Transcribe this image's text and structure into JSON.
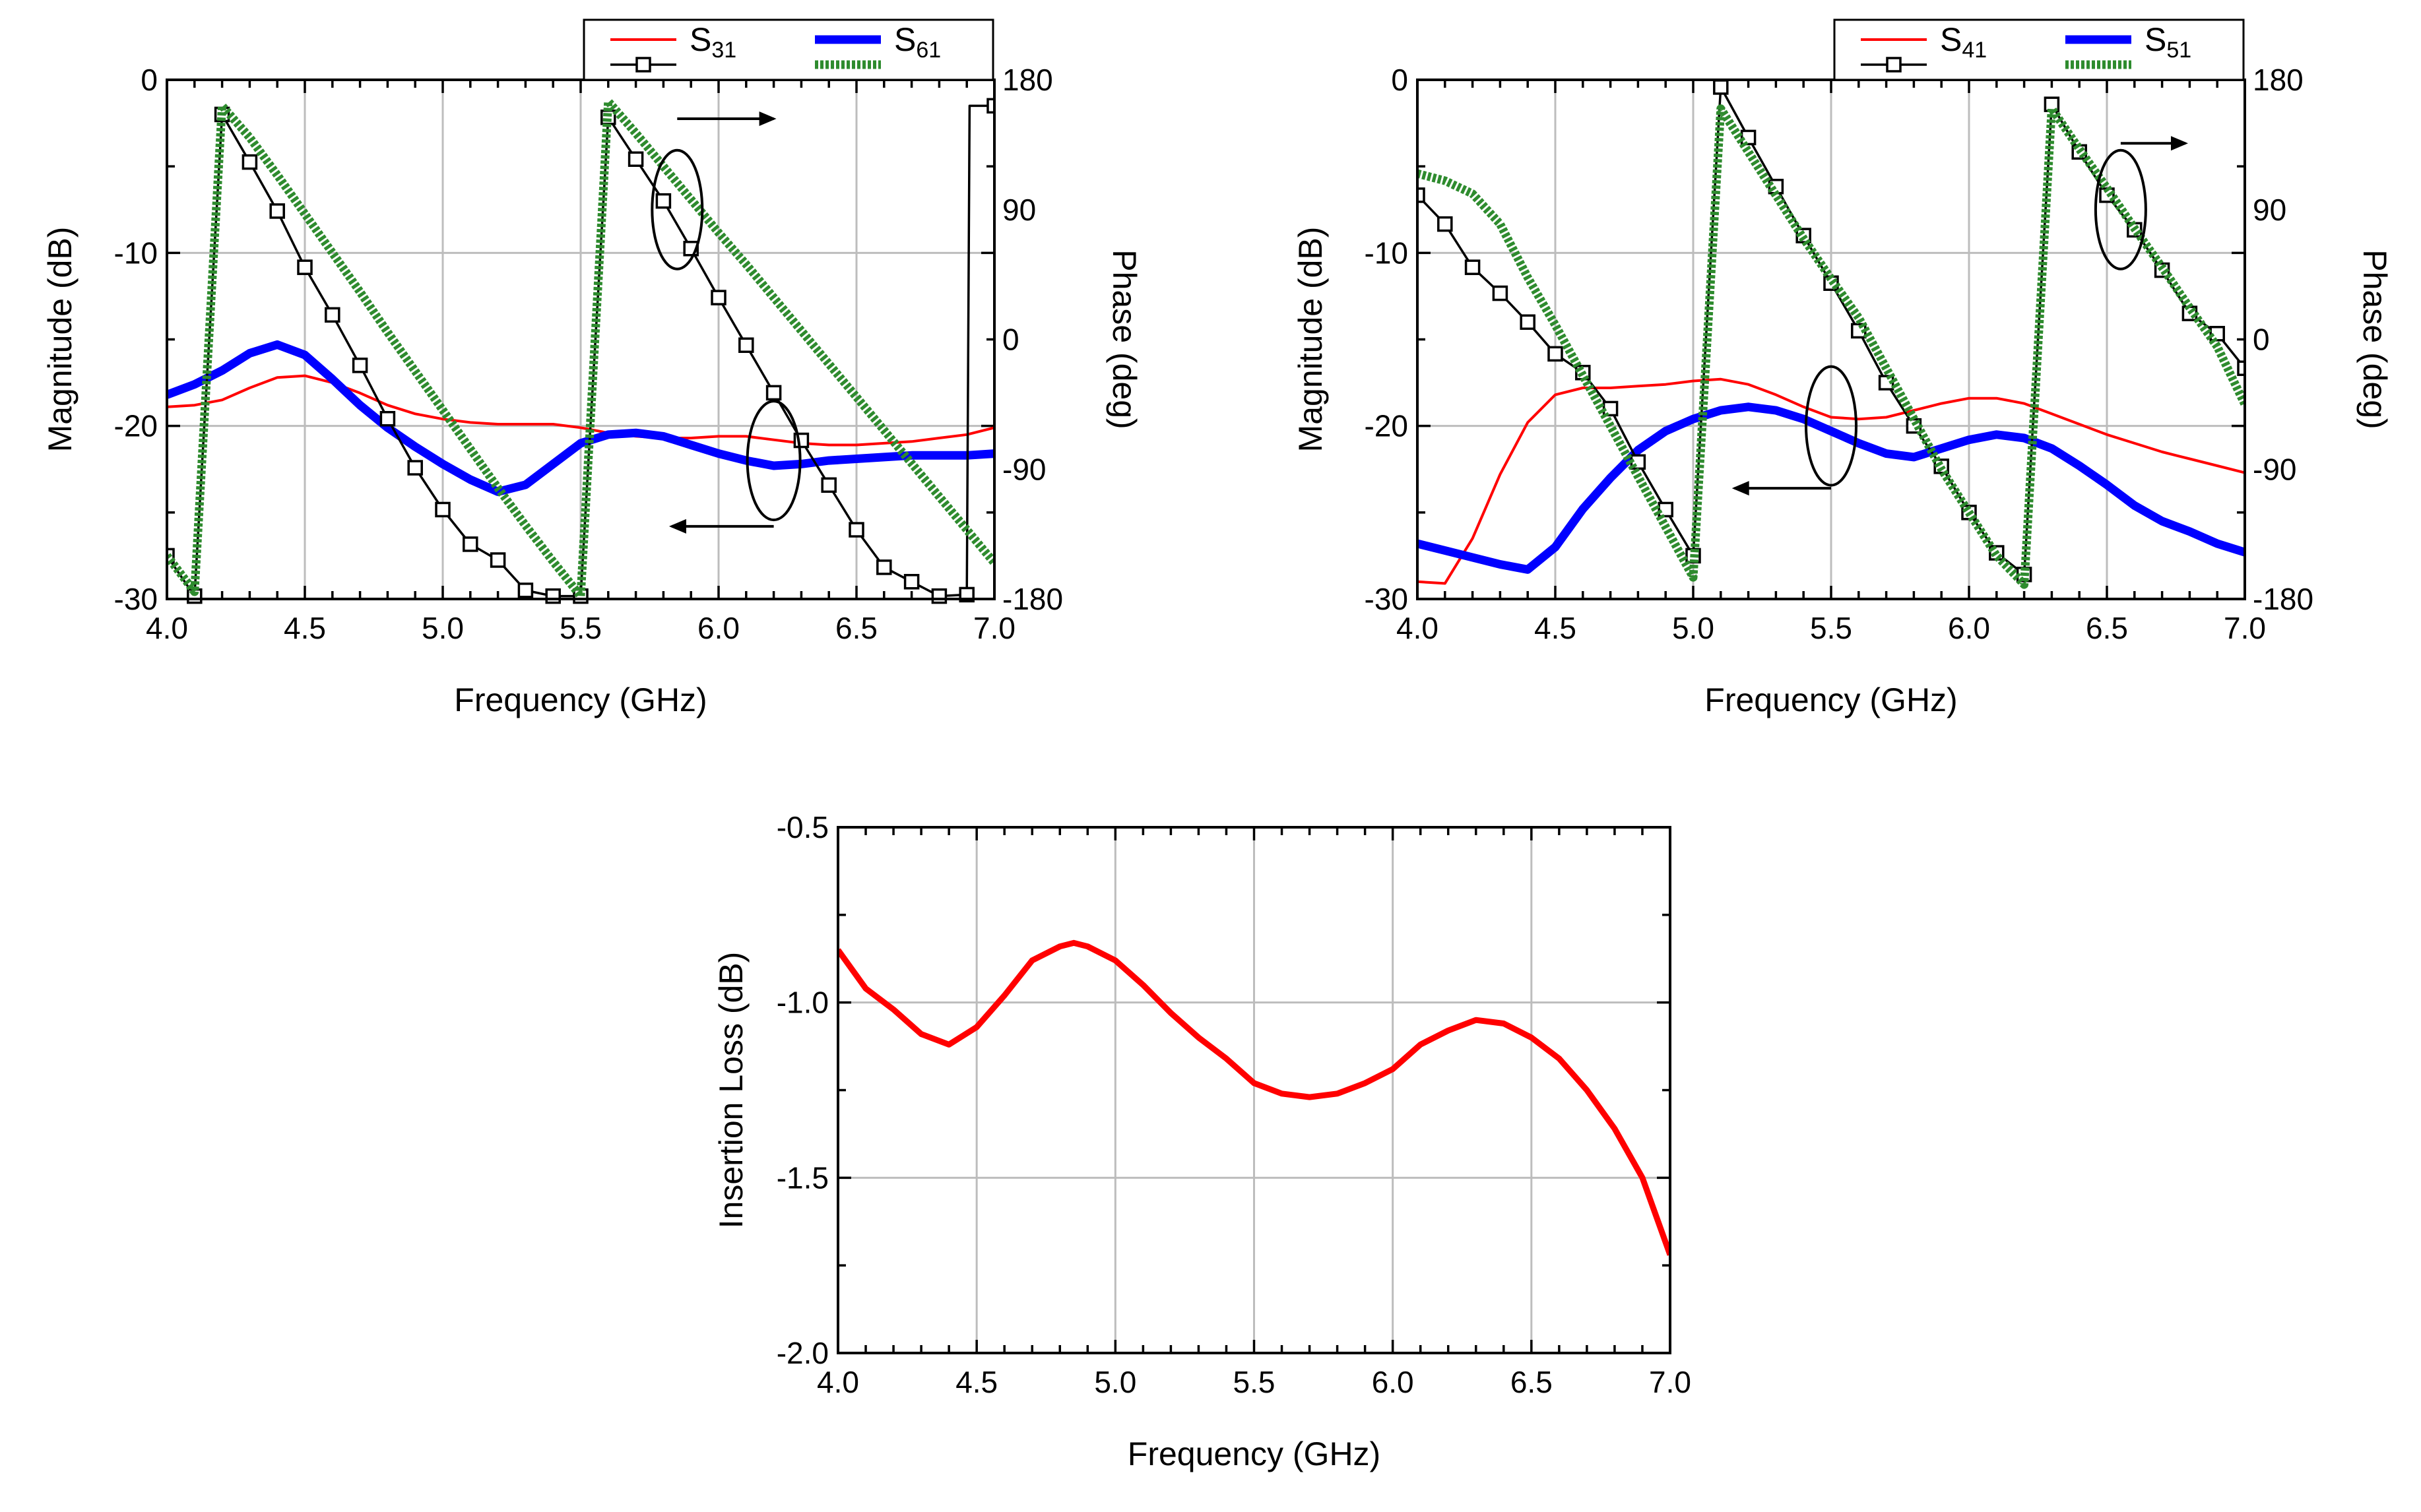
{
  "chart_data": [
    {
      "id": "chart1",
      "type": "line",
      "xlabel": "Frequency (GHz)",
      "ylabel": "Magnitude (dB)",
      "y2label": "Phase (deg)",
      "xlim": [
        4.0,
        7.0
      ],
      "ylim": [
        -30,
        0
      ],
      "y2lim": [
        -180,
        180
      ],
      "xticks": [
        "4.0",
        "4.5",
        "5.0",
        "5.5",
        "6.0",
        "6.5",
        "7.0"
      ],
      "yticks": [
        "0",
        "-10",
        "-20",
        "-30"
      ],
      "y2ticks": [
        "180",
        "90",
        "0",
        "-90",
        "-180"
      ],
      "grid": true,
      "legend_position": "top",
      "series": [
        {
          "name": "S31 magnitude",
          "label": "S",
          "sub": "31",
          "style": "thin-red",
          "axis": "left",
          "x": [
            4.0,
            4.1,
            4.2,
            4.3,
            4.4,
            4.5,
            4.6,
            4.7,
            4.8,
            4.9,
            5.0,
            5.1,
            5.2,
            5.3,
            5.4,
            5.5,
            5.6,
            5.7,
            5.8,
            5.9,
            6.0,
            6.1,
            6.2,
            6.3,
            6.4,
            6.5,
            6.6,
            6.7,
            6.8,
            6.9,
            7.0
          ],
          "y": [
            -18.9,
            -18.8,
            -18.5,
            -17.8,
            -17.2,
            -17.1,
            -17.5,
            -18.1,
            -18.8,
            -19.3,
            -19.6,
            -19.8,
            -19.9,
            -19.9,
            -19.9,
            -20.1,
            -20.4,
            -20.6,
            -20.7,
            -20.7,
            -20.6,
            -20.6,
            -20.8,
            -21.0,
            -21.1,
            -21.1,
            -21.0,
            -20.9,
            -20.7,
            -20.5,
            -20.1
          ]
        },
        {
          "name": "S61 magnitude",
          "label": "S",
          "sub": "61",
          "style": "thick-blue",
          "axis": "left",
          "x": [
            4.0,
            4.1,
            4.2,
            4.3,
            4.4,
            4.5,
            4.6,
            4.7,
            4.8,
            4.9,
            5.0,
            5.1,
            5.2,
            5.3,
            5.4,
            5.5,
            5.6,
            5.7,
            5.8,
            5.9,
            6.0,
            6.1,
            6.2,
            6.3,
            6.4,
            6.5,
            6.6,
            6.7,
            6.8,
            6.9,
            7.0
          ],
          "y": [
            -18.2,
            -17.6,
            -16.8,
            -15.8,
            -15.3,
            -15.9,
            -17.3,
            -18.8,
            -20.1,
            -21.2,
            -22.2,
            -23.1,
            -23.8,
            -23.4,
            -22.2,
            -21.0,
            -20.5,
            -20.4,
            -20.6,
            -21.1,
            -21.6,
            -22.0,
            -22.3,
            -22.2,
            -22.0,
            -21.9,
            -21.8,
            -21.7,
            -21.7,
            -21.7,
            -21.6
          ]
        },
        {
          "name": "S31 phase",
          "label": "S",
          "sub": "31",
          "style": "black-square",
          "axis": "right",
          "x": [
            4.0,
            4.1,
            4.1,
            4.2,
            4.3,
            4.4,
            4.5,
            4.6,
            4.7,
            4.8,
            4.9,
            5.0,
            5.1,
            5.2,
            5.3,
            5.4,
            5.5,
            5.5,
            5.6,
            5.7,
            5.8,
            5.9,
            6.0,
            6.1,
            6.2,
            6.3,
            6.4,
            6.5,
            6.6,
            6.7,
            6.8,
            6.9,
            6.91,
            7.0
          ],
          "y": [
            -150,
            -178,
            -178,
            156,
            123,
            89,
            50,
            17,
            -18,
            -55,
            -89,
            -118,
            -142,
            -153,
            -174,
            -178,
            -178,
            -178,
            154,
            125,
            96,
            63,
            29,
            -4,
            -37,
            -70,
            -101,
            -132,
            -158,
            -168,
            -178,
            -177,
            162,
            162
          ]
        },
        {
          "name": "S61 phase",
          "label": "S",
          "sub": "61",
          "style": "dotted-green",
          "axis": "right",
          "x": [
            4.0,
            4.1,
            4.2,
            4.3,
            4.4,
            4.5,
            4.6,
            4.7,
            4.8,
            4.9,
            5.0,
            5.1,
            5.2,
            5.3,
            5.4,
            5.5,
            5.6,
            5.7,
            5.8,
            5.9,
            6.0,
            6.1,
            6.2,
            6.3,
            6.4,
            6.5,
            6.6,
            6.7,
            6.8,
            6.9,
            7.0
          ],
          "y": [
            -150,
            -175,
            162,
            140,
            114,
            87,
            60,
            33,
            5,
            -22,
            -49,
            -76,
            -103,
            -129,
            -154,
            -178,
            165,
            143,
            120,
            97,
            74,
            52,
            29,
            6,
            -17,
            -40,
            -63,
            -86,
            -109,
            -132,
            -155
          ]
        }
      ],
      "annotations": [
        "magnitude-group-arrow-left",
        "phase-group-arrow-right"
      ]
    },
    {
      "id": "chart2",
      "type": "line",
      "xlabel": "Frequency (GHz)",
      "ylabel": "Magnitude (dB)",
      "y2label": "Phase (deg)",
      "xlim": [
        4.0,
        7.0
      ],
      "ylim": [
        -30,
        0
      ],
      "y2lim": [
        -180,
        180
      ],
      "xticks": [
        "4.0",
        "4.5",
        "5.0",
        "5.5",
        "6.0",
        "6.5",
        "7.0"
      ],
      "yticks": [
        "0",
        "-10",
        "-20",
        "-30"
      ],
      "y2ticks": [
        "180",
        "90",
        "0",
        "-90",
        "-180"
      ],
      "grid": true,
      "legend_position": "top",
      "series": [
        {
          "name": "S41 magnitude",
          "label": "S",
          "sub": "41",
          "style": "thin-red",
          "axis": "left",
          "x": [
            4.0,
            4.1,
            4.2,
            4.3,
            4.4,
            4.5,
            4.6,
            4.7,
            4.8,
            4.9,
            5.0,
            5.1,
            5.2,
            5.3,
            5.4,
            5.5,
            5.6,
            5.7,
            5.8,
            5.9,
            6.0,
            6.1,
            6.2,
            6.3,
            6.4,
            6.5,
            6.6,
            6.7,
            6.8,
            6.9,
            7.0
          ],
          "y": [
            -29.0,
            -29.1,
            -26.5,
            -22.8,
            -19.8,
            -18.2,
            -17.8,
            -17.8,
            -17.7,
            -17.6,
            -17.4,
            -17.3,
            -17.6,
            -18.2,
            -18.9,
            -19.5,
            -19.6,
            -19.5,
            -19.1,
            -18.7,
            -18.4,
            -18.4,
            -18.7,
            -19.3,
            -19.9,
            -20.5,
            -21.0,
            -21.5,
            -21.9,
            -22.3,
            -22.7
          ]
        },
        {
          "name": "S51 magnitude",
          "label": "S",
          "sub": "51",
          "style": "thick-blue",
          "axis": "left",
          "x": [
            4.0,
            4.1,
            4.2,
            4.3,
            4.4,
            4.5,
            4.6,
            4.7,
            4.8,
            4.9,
            5.0,
            5.1,
            5.2,
            5.3,
            5.4,
            5.5,
            5.6,
            5.7,
            5.8,
            5.9,
            6.0,
            6.1,
            6.2,
            6.3,
            6.4,
            6.5,
            6.6,
            6.7,
            6.8,
            6.9,
            7.0
          ],
          "y": [
            -26.8,
            -27.2,
            -27.6,
            -28.0,
            -28.3,
            -27.0,
            -24.8,
            -23.0,
            -21.4,
            -20.3,
            -19.6,
            -19.1,
            -18.9,
            -19.1,
            -19.6,
            -20.3,
            -21.0,
            -21.6,
            -21.8,
            -21.3,
            -20.8,
            -20.5,
            -20.7,
            -21.3,
            -22.3,
            -23.4,
            -24.6,
            -25.5,
            -26.1,
            -26.8,
            -27.3
          ]
        },
        {
          "name": "S41 phase",
          "label": "S",
          "sub": "41",
          "style": "black-square",
          "axis": "right",
          "x": [
            4.0,
            4.1,
            4.2,
            4.3,
            4.4,
            4.5,
            4.6,
            4.7,
            4.8,
            4.9,
            5.0,
            5.0,
            5.1,
            5.2,
            5.3,
            5.4,
            5.5,
            5.6,
            5.7,
            5.8,
            5.9,
            6.0,
            6.1,
            6.2,
            6.2,
            6.3,
            6.4,
            6.5,
            6.6,
            6.7,
            6.8,
            6.9,
            7.0
          ],
          "y": [
            100,
            80,
            50,
            32,
            12,
            -10,
            -23,
            -48,
            -85,
            -118,
            -150,
            -150,
            175,
            140,
            106,
            72,
            39,
            6,
            -30,
            -60,
            -88,
            -120,
            -148,
            -163,
            -163,
            163,
            130,
            100,
            76,
            48,
            18,
            4,
            -20
          ]
        },
        {
          "name": "S51 phase",
          "label": "S",
          "sub": "51",
          "style": "dotted-green",
          "axis": "right",
          "x": [
            4.0,
            4.1,
            4.2,
            4.3,
            4.4,
            4.5,
            4.6,
            4.7,
            4.8,
            4.9,
            5.0,
            5.1,
            5.2,
            5.3,
            5.4,
            5.5,
            5.6,
            5.7,
            5.8,
            5.9,
            6.0,
            6.1,
            6.2,
            6.3,
            6.4,
            6.5,
            6.6,
            6.7,
            6.8,
            6.9,
            7.0
          ],
          "y": [
            115,
            110,
            101,
            80,
            43,
            10,
            -25,
            -60,
            -95,
            -130,
            -165,
            160,
            130,
            100,
            70,
            42,
            15,
            -20,
            -55,
            -90,
            -120,
            -150,
            -170,
            160,
            132,
            105,
            77,
            50,
            22,
            -5,
            -45
          ]
        }
      ],
      "annotations": [
        "magnitude-group-arrow-left",
        "phase-group-arrow-right"
      ]
    },
    {
      "id": "chart3",
      "type": "line",
      "xlabel": "Frequency (GHz)",
      "ylabel": "Insertion Loss (dB)",
      "xlim": [
        4.0,
        7.0
      ],
      "ylim": [
        -2.0,
        -0.5
      ],
      "xticks": [
        "4.0",
        "4.5",
        "5.0",
        "5.5",
        "6.0",
        "6.5",
        "7.0"
      ],
      "yticks": [
        "-0.5",
        "-1.0",
        "-1.5",
        "-2.0"
      ],
      "grid": true,
      "series": [
        {
          "name": "Insertion Loss",
          "style": "thick-red",
          "axis": "left",
          "x": [
            4.0,
            4.1,
            4.2,
            4.3,
            4.4,
            4.5,
            4.6,
            4.7,
            4.8,
            4.85,
            4.9,
            5.0,
            5.1,
            5.2,
            5.3,
            5.4,
            5.5,
            5.6,
            5.7,
            5.8,
            5.9,
            6.0,
            6.1,
            6.2,
            6.3,
            6.4,
            6.5,
            6.6,
            6.7,
            6.8,
            6.9,
            7.0
          ],
          "y": [
            -0.85,
            -0.96,
            -1.02,
            -1.09,
            -1.12,
            -1.07,
            -0.98,
            -0.88,
            -0.84,
            -0.83,
            -0.84,
            -0.88,
            -0.95,
            -1.03,
            -1.1,
            -1.16,
            -1.23,
            -1.26,
            -1.27,
            -1.26,
            -1.23,
            -1.19,
            -1.12,
            -1.08,
            -1.05,
            -1.06,
            -1.1,
            -1.16,
            -1.25,
            -1.36,
            -1.5,
            -1.72
          ]
        }
      ]
    }
  ]
}
